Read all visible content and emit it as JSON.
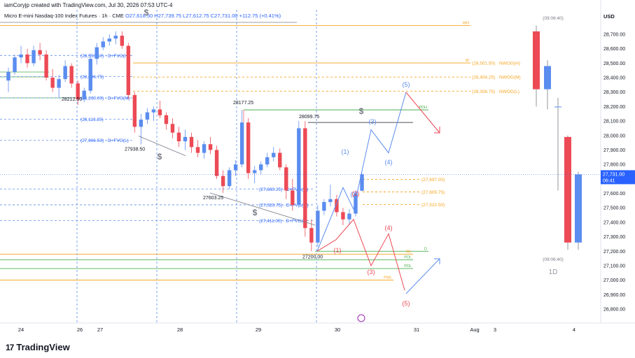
{
  "header": {
    "creator": "iamCoryjp created with TradingView.com, Jul 30, 2026 07:53 UTC-4",
    "symbol": "Micro E-mini Nasdaq-100 Index Futures · 1h · CME",
    "ohlc": "O27,618.50 H27,739.75 L27,612.75 C27,731.00",
    "change": "+112.75 (+0.41%)"
  },
  "branding": {
    "name": "TradingView",
    "logo_text": "17"
  },
  "price_axis": {
    "currency": "USD",
    "ticks": [
      "28,700.00",
      "28,600.00",
      "28,500.00",
      "28,400.00",
      "28,300.00",
      "28,200.00",
      "28,100.00",
      "28,000.00",
      "27,900.00",
      "27,800.00",
      "27,700.00",
      "27,600.00",
      "27,500.00",
      "27,400.00",
      "27,300.00",
      "27,200.00",
      "27,100.00",
      "27,000.00",
      "26,900.00",
      "26,800.00"
    ],
    "last_price": "27,731.00",
    "countdown": "06:41"
  },
  "time_axis": {
    "labels": [
      "24",
      "26",
      "27",
      "28",
      "29",
      "30",
      "31",
      "Aug",
      "3",
      "4"
    ]
  },
  "daily_panel": {
    "timeframe": "1D",
    "top_timer": "(09:06:40)",
    "bottom_timer": "(09:06:40)"
  },
  "colors": {
    "up": "#5b8def",
    "down": "#ec4a55",
    "blue_wave": "#5b8def",
    "red_wave": "#ec4a55",
    "green": "#4caf50",
    "orange": "#f5a623",
    "gray": "#787b86"
  },
  "chart_data": {
    "type": "candlestick",
    "title": "",
    "ylim": [
      26700,
      28800
    ],
    "ohlc": [
      {
        "t": "24 12:00",
        "o": 28380,
        "h": 28470,
        "l": 28300,
        "c": 28440
      },
      {
        "t": "24 16:00",
        "o": 28440,
        "h": 28560,
        "l": 28420,
        "c": 28540
      },
      {
        "t": "24 20:00",
        "o": 28540,
        "h": 28620,
        "l": 28500,
        "c": 28560
      },
      {
        "t": "25 00:00",
        "o": 28560,
        "h": 28600,
        "l": 28470,
        "c": 28500
      },
      {
        "t": "25 04:00",
        "o": 28500,
        "h": 28620,
        "l": 28480,
        "c": 28590
      },
      {
        "t": "25 08:00",
        "o": 28590,
        "h": 28640,
        "l": 28520,
        "c": 28560
      },
      {
        "t": "25 12:00",
        "o": 28560,
        "h": 28590,
        "l": 28380,
        "c": 28400
      },
      {
        "t": "25 16:00",
        "o": 28400,
        "h": 28460,
        "l": 28300,
        "c": 28330
      },
      {
        "t": "25 20:00",
        "o": 28330,
        "h": 28420,
        "l": 28260,
        "c": 28390
      },
      {
        "t": "26 00:00",
        "o": 28390,
        "h": 28520,
        "l": 28370,
        "c": 28480
      },
      {
        "t": "26 04:00",
        "o": 28480,
        "h": 28500,
        "l": 28330,
        "c": 28360
      },
      {
        "t": "26 08:00",
        "o": 28360,
        "h": 28380,
        "l": 28212,
        "c": 28250
      },
      {
        "t": "26 12:00",
        "o": 28250,
        "h": 28330,
        "l": 28230,
        "c": 28310
      },
      {
        "t": "26 16:00",
        "o": 28310,
        "h": 28560,
        "l": 28290,
        "c": 28530
      },
      {
        "t": "26 20:00",
        "o": 28530,
        "h": 28640,
        "l": 28490,
        "c": 28610
      },
      {
        "t": "27 00:00",
        "o": 28610,
        "h": 28680,
        "l": 28590,
        "c": 28650
      },
      {
        "t": "27 04:00",
        "o": 28650,
        "h": 28700,
        "l": 28620,
        "c": 28670
      },
      {
        "t": "27 08:00",
        "o": 28670,
        "h": 28720,
        "l": 28630,
        "c": 28690
      },
      {
        "t": "27 12:00",
        "o": 28690,
        "h": 28720,
        "l": 28600,
        "c": 28620
      },
      {
        "t": "27 14:00",
        "o": 28620,
        "h": 28640,
        "l": 28250,
        "c": 28280
      },
      {
        "t": "27 16:00",
        "o": 28280,
        "h": 28300,
        "l": 28020,
        "c": 28060
      },
      {
        "t": "27 18:00",
        "o": 28060,
        "h": 28150,
        "l": 27938,
        "c": 28110
      },
      {
        "t": "27 20:00",
        "o": 28110,
        "h": 28190,
        "l": 28080,
        "c": 28160
      },
      {
        "t": "27 22:00",
        "o": 28160,
        "h": 28200,
        "l": 28100,
        "c": 28180
      },
      {
        "t": "28 00:00",
        "o": 28180,
        "h": 28240,
        "l": 28120,
        "c": 28140
      },
      {
        "t": "28 02:00",
        "o": 28140,
        "h": 28160,
        "l": 28040,
        "c": 28080
      },
      {
        "t": "28 04:00",
        "o": 28080,
        "h": 28120,
        "l": 27980,
        "c": 28020
      },
      {
        "t": "28 06:00",
        "o": 28020,
        "h": 28060,
        "l": 27920,
        "c": 27960
      },
      {
        "t": "28 08:00",
        "o": 27960,
        "h": 28040,
        "l": 27900,
        "c": 27990
      },
      {
        "t": "28 10:00",
        "o": 27990,
        "h": 28020,
        "l": 27880,
        "c": 27920
      },
      {
        "t": "28 12:00",
        "o": 27920,
        "h": 27970,
        "l": 27850,
        "c": 27880
      },
      {
        "t": "28 14:00",
        "o": 27880,
        "h": 27960,
        "l": 27840,
        "c": 27940
      },
      {
        "t": "28 16:00",
        "o": 27940,
        "h": 27990,
        "l": 27870,
        "c": 27900
      },
      {
        "t": "28 18:00",
        "o": 27900,
        "h": 27930,
        "l": 27700,
        "c": 27720
      },
      {
        "t": "28 20:00",
        "o": 27720,
        "h": 27760,
        "l": 27603,
        "c": 27650
      },
      {
        "t": "28 22:00",
        "o": 27650,
        "h": 27780,
        "l": 27630,
        "c": 27760
      },
      {
        "t": "29 00:00",
        "o": 27760,
        "h": 27830,
        "l": 27720,
        "c": 27800
      },
      {
        "t": "29 02:00",
        "o": 27800,
        "h": 28177,
        "l": 27780,
        "c": 28090
      },
      {
        "t": "29 04:00",
        "o": 28090,
        "h": 28120,
        "l": 27700,
        "c": 27740
      },
      {
        "t": "29 06:00",
        "o": 27740,
        "h": 27790,
        "l": 27670,
        "c": 27760
      },
      {
        "t": "29 08:00",
        "o": 27760,
        "h": 27820,
        "l": 27730,
        "c": 27800
      },
      {
        "t": "29 10:00",
        "o": 27800,
        "h": 27880,
        "l": 27780,
        "c": 27850
      },
      {
        "t": "29 12:00",
        "o": 27850,
        "h": 27920,
        "l": 27820,
        "c": 27880
      },
      {
        "t": "29 14:00",
        "o": 27880,
        "h": 27910,
        "l": 27760,
        "c": 27780
      },
      {
        "t": "29 16:00",
        "o": 27780,
        "h": 27800,
        "l": 27560,
        "c": 27620
      },
      {
        "t": "29 18:00",
        "o": 27620,
        "h": 27700,
        "l": 27480,
        "c": 27520
      },
      {
        "t": "29 20:00",
        "o": 27520,
        "h": 28100,
        "l": 27500,
        "c": 28050
      },
      {
        "t": "29 22:00",
        "o": 28050,
        "h": 28099,
        "l": 27300,
        "c": 27360
      },
      {
        "t": "30 00:00",
        "o": 27360,
        "h": 27420,
        "l": 27200,
        "c": 27260
      },
      {
        "t": "30 01:00",
        "o": 27260,
        "h": 27520,
        "l": 27230,
        "c": 27480
      },
      {
        "t": "30 02:00",
        "o": 27480,
        "h": 27560,
        "l": 27450,
        "c": 27540
      },
      {
        "t": "30 03:00",
        "o": 27540,
        "h": 27660,
        "l": 27510,
        "c": 27560
      },
      {
        "t": "30 04:00",
        "o": 27560,
        "h": 27590,
        "l": 27440,
        "c": 27470
      },
      {
        "t": "30 05:00",
        "o": 27470,
        "h": 27500,
        "l": 27380,
        "c": 27420
      },
      {
        "t": "30 06:00",
        "o": 27420,
        "h": 27490,
        "l": 27380,
        "c": 27460
      },
      {
        "t": "30 07:00",
        "o": 27460,
        "h": 27620,
        "l": 27440,
        "c": 27600
      },
      {
        "t": "30 08:00",
        "o": 27618.5,
        "h": 27739.75,
        "l": 27612.75,
        "c": 27731
      }
    ],
    "daily_ohlc": [
      {
        "t": "D1",
        "o": 28720,
        "h": 28760,
        "l": 28200,
        "c": 28320
      },
      {
        "t": "D2",
        "o": 28320,
        "h": 28520,
        "l": 28180,
        "c": 28480
      },
      {
        "t": "D3",
        "o": 28200,
        "h": 28260,
        "l": 27620,
        "c": 28200
      },
      {
        "t": "D4",
        "o": 27990,
        "h": 28000,
        "l": 27210,
        "c": 27260
      },
      {
        "t": "D5",
        "o": 27260,
        "h": 27750,
        "l": 27210,
        "c": 27731
      }
    ],
    "level_lines": [
      {
        "price": 28760,
        "label": "WH",
        "color": "#f5a623",
        "style": "solid"
      },
      {
        "price": 28501.5,
        "label": "W",
        "color": "#f5a623",
        "style": "solid"
      },
      {
        "price": 28501.5,
        "label": "(28,501.50) · NWOG(H)",
        "color": "#f5a623",
        "style": "dashed"
      },
      {
        "price": 28404.25,
        "label": "(28,404.25) · NWOG(M)",
        "color": "#f5a623",
        "style": "dashed"
      },
      {
        "price": 28306.75,
        "label": "(28,306.75) · NWOG(L)",
        "color": "#f5a623",
        "style": "dashed"
      },
      {
        "price": 28177.25,
        "label": "PDH",
        "color": "#4caf50",
        "style": "solid"
      },
      {
        "price": 27697,
        "label": "(27,697.00)",
        "color": "#f5a623",
        "style": "dashed"
      },
      {
        "price": 27609.75,
        "label": "(27,609.75)",
        "color": "#f5a623",
        "style": "dashed"
      },
      {
        "price": 27522.5,
        "label": "(27,522.50)",
        "color": "#f5a623",
        "style": "dashed"
      },
      {
        "price": 27200,
        "label": "D",
        "color": "#4caf50",
        "style": "solid"
      },
      {
        "price": 27180,
        "label": "WL",
        "color": "#f5a623",
        "style": "solid"
      },
      {
        "price": 27140,
        "label": "PDL",
        "color": "#4caf50",
        "style": "solid"
      },
      {
        "price": 27080,
        "label": "PDL",
        "color": "#4caf50",
        "style": "solid"
      },
      {
        "price": 27000,
        "label": "PWL",
        "color": "#f5a623",
        "style": "solid"
      }
    ],
    "fvg_levels": [
      {
        "price": 28553.5,
        "label": "(28,553.50) · D+FVG(H)"
      },
      {
        "price": 28406.75,
        "label": "(28,406.75)"
      },
      {
        "price": 28260,
        "label": "(28,260.00) · D+FVG(M)"
      },
      {
        "price": 28113.25,
        "label": "(28,113.25)"
      },
      {
        "price": 27966.5,
        "label": "(27,966.50) · D+FVG(L)"
      },
      {
        "price": 27630.25,
        "label": "(27,630.25) · D+FVG(H)"
      },
      {
        "price": 27520.75,
        "label": "(27,520.75) · D+FVG(M)"
      },
      {
        "price": 27411,
        "label": "(27,411.00) · D+FVG(L)"
      }
    ],
    "price_annotations": [
      {
        "price": 28212.5,
        "label": "28212.50"
      },
      {
        "price": 27938.5,
        "label": "27938.50"
      },
      {
        "price": 28177.25,
        "label": "28177.25"
      },
      {
        "price": 28099.75,
        "label": "28099.75"
      },
      {
        "price": 27603.25,
        "label": "27603.25"
      },
      {
        "price": 27200,
        "label": "27200.00"
      }
    ],
    "blue_wave_projection": [
      {
        "label": "(1)",
        "price": 27640
      },
      {
        "label": "(2)",
        "price": 27490
      },
      {
        "label": "(3)",
        "price": 28040
      },
      {
        "label": "(4)",
        "price": 27880
      },
      {
        "label": "(5)",
        "price": 28300
      }
    ],
    "red_wave_projection": [
      {
        "label": "(1)",
        "price": 27280
      },
      {
        "label": "(2)",
        "price": 27420
      },
      {
        "label": "(3)",
        "price": 27100
      },
      {
        "label": "(4)",
        "price": 27320
      },
      {
        "label": "(5)",
        "price": 26930
      }
    ],
    "small_labels": [
      "PDH",
      "PDL",
      "PWL",
      "PWL",
      "PDH",
      "$",
      "$",
      "$",
      "$"
    ]
  }
}
